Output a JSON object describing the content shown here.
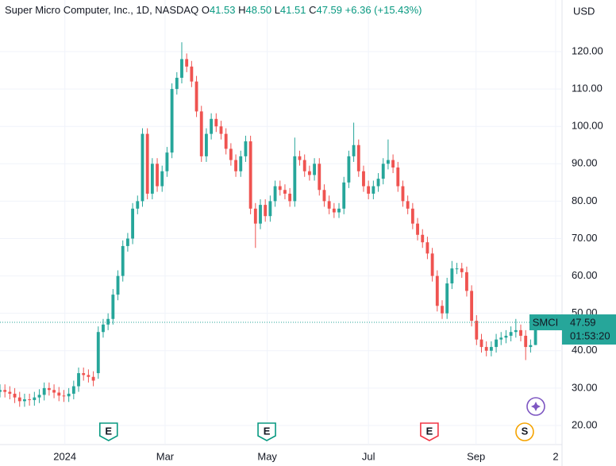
{
  "header": {
    "title": "Super Micro Computer, Inc., 1D, NASDAQ",
    "ohlc": [
      {
        "label": "O",
        "value": "41.53"
      },
      {
        "label": "H",
        "value": "48.50"
      },
      {
        "label": "L",
        "value": "41.51"
      },
      {
        "label": "C",
        "value": "47.59"
      }
    ],
    "change": "+6.36 (+15.43%)",
    "currency": "USD",
    "countdown": "01:53:20"
  },
  "chart_data": {
    "type": "candlestick",
    "series": [
      {
        "name": "SMCI",
        "up_color": "#26a69a",
        "down_color": "#ef5350",
        "open": [
          29,
          29.5,
          29,
          28.5,
          27.5,
          26.5,
          27,
          26.8,
          27.5,
          28.2,
          30,
          29.5,
          28.8,
          28,
          27.8,
          28.5,
          30.5,
          34,
          33.5,
          33,
          34,
          45,
          47,
          48.5,
          55,
          60,
          68,
          70,
          78,
          80,
          98,
          82,
          90,
          84,
          88,
          93,
          110,
          113,
          118,
          116,
          112,
          104,
          92,
          98,
          102,
          100,
          98,
          94,
          91,
          88,
          92,
          96,
          78,
          74,
          79,
          76,
          80,
          84,
          83,
          82,
          80,
          92,
          91,
          88,
          87,
          90,
          83,
          80,
          78,
          77,
          78,
          85,
          92,
          95,
          88,
          84,
          82,
          84,
          86,
          90,
          91,
          89,
          84,
          80,
          78,
          74,
          71,
          69,
          66,
          60,
          52,
          50,
          58,
          62,
          62,
          61,
          56,
          48,
          43,
          41,
          40,
          41,
          43,
          43.5,
          44,
          45,
          45.5,
          44,
          41,
          41.53
        ],
        "high": [
          31,
          31,
          30.5,
          30,
          29,
          28.5,
          28.5,
          29,
          29.7,
          31.5,
          31.5,
          31,
          30.3,
          29.5,
          30,
          32,
          35.5,
          35.5,
          35,
          34.5,
          46.5,
          48.5,
          50,
          56.5,
          61.5,
          69.5,
          71.5,
          79.5,
          81.5,
          99.5,
          99.5,
          91.5,
          91.5,
          89.5,
          94.5,
          111.5,
          114.5,
          122.5,
          119.5,
          117.5,
          113.5,
          105.5,
          99.5,
          103.5,
          103.5,
          101.5,
          99.5,
          95.5,
          92.5,
          93.5,
          97.5,
          97.5,
          79.5,
          80.5,
          80.5,
          81.5,
          85.5,
          85.5,
          84.5,
          83.5,
          97,
          93.5,
          92.5,
          89.5,
          91.5,
          91.5,
          84.5,
          81.5,
          79.5,
          79.5,
          86.5,
          93.5,
          101,
          96.5,
          89.5,
          85.5,
          85.5,
          87.5,
          91.5,
          96.5,
          92.5,
          90.5,
          85.5,
          81.5,
          79.5,
          75.5,
          72.5,
          70.5,
          67.5,
          61.5,
          53.5,
          59.5,
          64,
          63.5,
          63.5,
          62.5,
          57.5,
          49.5,
          44.5,
          42.5,
          42.5,
          44.5,
          45,
          45.5,
          46.5,
          48.5,
          47,
          45.5,
          43,
          48.5
        ],
        "low": [
          27.5,
          27.5,
          27,
          26,
          25,
          25,
          25.3,
          25.3,
          26,
          26.7,
          28,
          27.3,
          26.5,
          26.3,
          26.3,
          27,
          29,
          32,
          31.5,
          30.5,
          32.5,
          43.5,
          45.5,
          47,
          53.5,
          58.5,
          66.5,
          68.5,
          76.5,
          78.5,
          80.5,
          80.5,
          82.5,
          82.5,
          86.5,
          91.5,
          108.5,
          111.5,
          114.5,
          110.5,
          102.5,
          90.5,
          90.5,
          96.5,
          98.5,
          96.5,
          92.5,
          89.5,
          86.5,
          86.5,
          90.5,
          76.5,
          67.5,
          72.5,
          74.5,
          74.5,
          78.5,
          81.5,
          80.5,
          78.5,
          78.5,
          89.5,
          86.5,
          85.5,
          85.5,
          81.5,
          78.5,
          76.5,
          75.5,
          75.5,
          76.5,
          83.5,
          90.5,
          86.5,
          82.5,
          80.5,
          80.5,
          82.5,
          84.5,
          88.5,
          87.5,
          82.5,
          78.5,
          76.5,
          72.5,
          69.5,
          67.5,
          64.5,
          58.5,
          50.5,
          48.5,
          48.5,
          56.5,
          60.5,
          59.5,
          54.5,
          46.5,
          41.5,
          39.5,
          38.5,
          38.5,
          39.5,
          41.5,
          42,
          42.5,
          43.5,
          42.5,
          37.5,
          39.5,
          41.51
        ],
        "close": [
          29.5,
          29,
          28.5,
          27.5,
          26.5,
          27,
          26.8,
          27.5,
          28.2,
          30,
          29.5,
          28.8,
          28,
          27.8,
          28.5,
          30.5,
          34,
          33.5,
          33,
          32,
          45,
          47,
          48.5,
          55,
          60,
          68,
          70,
          78,
          80,
          98,
          82,
          90,
          84,
          88,
          93,
          110,
          113,
          118,
          116,
          112,
          104,
          92,
          98,
          102,
          100,
          98,
          94,
          91,
          88,
          92,
          96,
          78,
          74,
          79,
          76,
          80,
          84,
          83,
          82,
          80,
          92,
          91,
          88,
          87,
          90,
          83,
          80,
          78,
          77,
          78,
          85,
          92,
          95,
          88,
          84,
          82,
          84,
          86,
          90,
          91,
          89,
          84,
          80,
          78,
          74,
          71,
          69,
          66,
          60,
          52,
          50,
          58,
          62,
          62,
          61,
          56,
          48,
          43,
          41,
          40,
          41,
          43,
          43.5,
          44,
          45,
          45.5,
          44,
          41,
          41.5,
          47.59
        ]
      }
    ],
    "xlim": [
      0,
      114.4
    ],
    "xticks": [
      {
        "value": 13.2,
        "label": "2024"
      },
      {
        "value": 33.6,
        "label": "Mar"
      },
      {
        "value": 54.4,
        "label": "May"
      },
      {
        "value": 75,
        "label": "Jul"
      },
      {
        "value": 96.9,
        "label": "Sep"
      },
      {
        "value": 113.1,
        "label": "2"
      }
    ],
    "ylim": [
      14.9,
      133.8
    ],
    "yticks": [
      {
        "value": 20,
        "label": "20.00"
      },
      {
        "value": 30,
        "label": "30.00"
      },
      {
        "value": 40,
        "label": "40.00"
      },
      {
        "value": 50,
        "label": "50.00"
      },
      {
        "value": 60,
        "label": "60.00"
      },
      {
        "value": 70,
        "label": "70.00"
      },
      {
        "value": 80,
        "label": "80.00"
      },
      {
        "value": 90,
        "label": "90.00"
      },
      {
        "value": 100,
        "label": "100.00"
      },
      {
        "value": 110,
        "label": "110.00"
      },
      {
        "value": 120,
        "label": "120.00"
      }
    ],
    "grid": true,
    "events": [
      {
        "x": 22.1,
        "label": "E",
        "color": "#089981"
      },
      {
        "x": 54.3,
        "label": "E",
        "color": "#089981"
      },
      {
        "x": 87.4,
        "label": "E",
        "color": "#f23645"
      },
      {
        "x": 106.8,
        "label": "S",
        "color": "#f5a300"
      }
    ]
  }
}
